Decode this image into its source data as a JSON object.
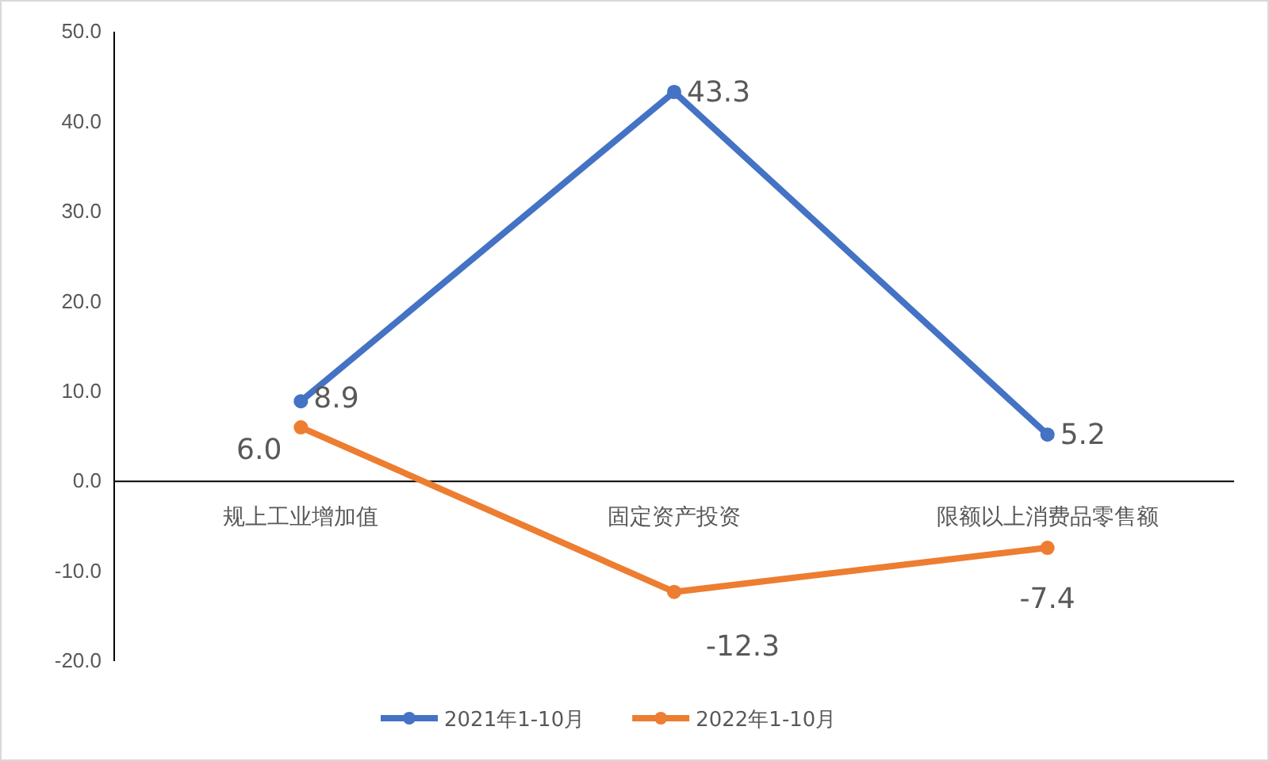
{
  "chart_data": {
    "type": "line",
    "categories": [
      "规上工业增加值",
      "固定资产投资",
      "限额以上消费品零售额"
    ],
    "series": [
      {
        "name": "2021年1-10月",
        "color": "#4472c4",
        "values": [
          8.9,
          43.3,
          5.2
        ],
        "value_labels": [
          "8.9",
          "43.3",
          "5.2"
        ]
      },
      {
        "name": "2022年1-10月",
        "color": "#ed7d31",
        "values": [
          6.0,
          -12.3,
          -7.4
        ],
        "value_labels": [
          "6.0",
          "-12.3",
          "-7.4"
        ]
      }
    ],
    "ylim": [
      -20,
      50
    ],
    "yticks": [
      {
        "value": -20,
        "label": "-20.0"
      },
      {
        "value": -10,
        "label": "-10.0"
      },
      {
        "value": 0,
        "label": "0.0"
      },
      {
        "value": 10,
        "label": "10.0"
      },
      {
        "value": 20,
        "label": "20.0"
      },
      {
        "value": 30,
        "label": "30.0"
      },
      {
        "value": 40,
        "label": "40.0"
      },
      {
        "value": 50,
        "label": "50.0"
      }
    ],
    "marker": "circle",
    "line_style": "solid",
    "legend": "bottom",
    "grid": false
  }
}
